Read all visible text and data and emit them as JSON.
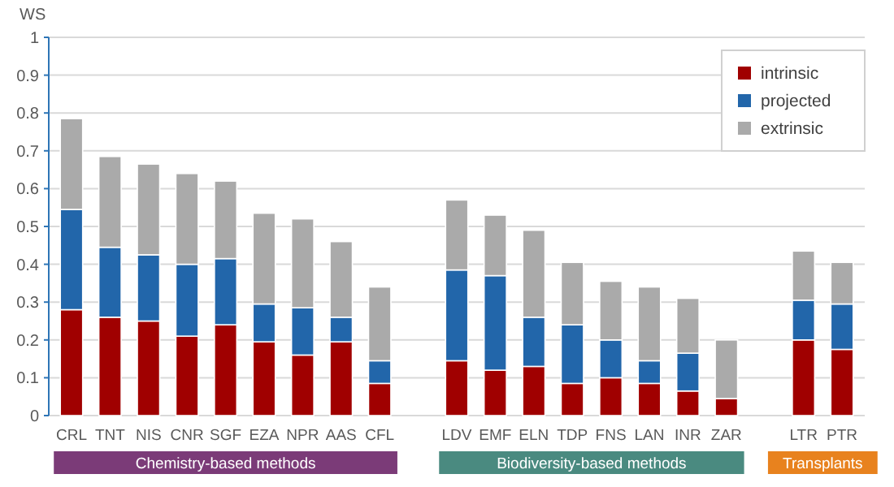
{
  "chart_data": {
    "type": "bar",
    "stacked": true,
    "ylabel": "WS",
    "categories": [
      "CRL",
      "TNT",
      "NIS",
      "CNR",
      "SGF",
      "EZA",
      "NPR",
      "AAS",
      "CFL",
      null,
      "LDV",
      "EMF",
      "ELN",
      "TDP",
      "FNS",
      "LAN",
      "INR",
      "ZAR",
      null,
      "LTR",
      "PTR"
    ],
    "series": [
      {
        "name": "intrinsic",
        "color": "#a00000",
        "values": [
          0.28,
          0.26,
          0.25,
          0.21,
          0.24,
          0.195,
          0.16,
          0.195,
          0.085,
          null,
          0.145,
          0.12,
          0.13,
          0.085,
          0.1,
          0.085,
          0.065,
          0.045,
          null,
          0.2,
          0.175
        ]
      },
      {
        "name": "projected",
        "color": "#2266aa",
        "values": [
          0.265,
          0.185,
          0.175,
          0.19,
          0.175,
          0.1,
          0.125,
          0.065,
          0.06,
          null,
          0.24,
          0.25,
          0.13,
          0.155,
          0.1,
          0.06,
          0.1,
          0,
          null,
          0.105,
          0.12
        ]
      },
      {
        "name": "extrinsic",
        "color": "#aaaaaa",
        "values": [
          0.24,
          0.24,
          0.24,
          0.24,
          0.205,
          0.24,
          0.235,
          0.2,
          0.195,
          null,
          0.185,
          0.16,
          0.23,
          0.165,
          0.155,
          0.195,
          0.145,
          0.155,
          null,
          0.13,
          0.11
        ]
      }
    ],
    "ylim": [
      0,
      1
    ],
    "yticks": [
      0,
      0.1,
      0.2,
      0.3,
      0.4,
      0.5,
      0.6,
      0.7,
      0.8,
      0.9,
      1
    ],
    "grid": "y",
    "legend": "top right",
    "annotations": [
      "Chemistry-based methods",
      "Biodiversity-based methods",
      "Transplants"
    ]
  }
}
